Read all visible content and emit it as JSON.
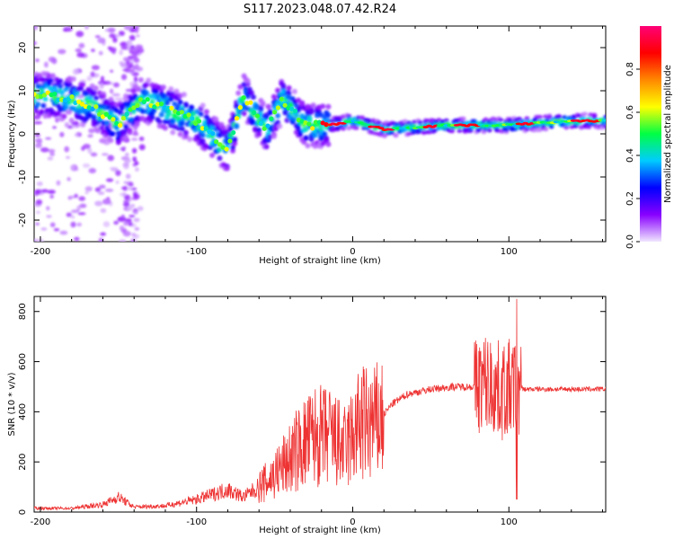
{
  "title": "S117.2023.048.07.42.R24",
  "chart_data": [
    {
      "type": "heatmap",
      "xlabel": "Height of straight line (km)",
      "ylabel": "Frequency (Hz)",
      "xlim": [
        -204,
        162
      ],
      "ylim": [
        -25,
        25
      ],
      "xticks": [
        -200,
        -100,
        0,
        100
      ],
      "yticks": [
        -20,
        -10,
        0,
        10,
        20
      ],
      "colorbar": {
        "label": "Normalized spectral amplitude",
        "range": [
          0.0,
          1.0
        ],
        "ticks": [
          0.0,
          0.2,
          0.4,
          0.6,
          0.8
        ],
        "colors": [
          "#f0e6ff",
          "#8800ff",
          "#0000ff",
          "#00ccff",
          "#00ff44",
          "#ffff00",
          "#ff8800",
          "#ff0000",
          "#ff0077"
        ]
      },
      "ridge": [
        {
          "x": -195,
          "y": 9
        },
        {
          "x": -180,
          "y": 8
        },
        {
          "x": -165,
          "y": 6
        },
        {
          "x": -150,
          "y": 2
        },
        {
          "x": -135,
          "y": 8
        },
        {
          "x": -120,
          "y": 6
        },
        {
          "x": -100,
          "y": 3
        },
        {
          "x": -80,
          "y": -4
        },
        {
          "x": -70,
          "y": 9
        },
        {
          "x": -55,
          "y": 1
        },
        {
          "x": -45,
          "y": 8
        },
        {
          "x": -30,
          "y": 2
        },
        {
          "x": -15,
          "y": 2
        },
        {
          "x": 0,
          "y": 3
        },
        {
          "x": 20,
          "y": 1
        },
        {
          "x": 60,
          "y": 2
        },
        {
          "x": 100,
          "y": 2
        },
        {
          "x": 140,
          "y": 3
        },
        {
          "x": 162,
          "y": 3
        }
      ]
    },
    {
      "type": "line",
      "xlabel": "Height of straight line (km)",
      "ylabel": "SNR (10 * v/v)",
      "xlim": [
        -204,
        162
      ],
      "ylim": [
        0,
        860
      ],
      "xticks": [
        -200,
        -100,
        0,
        100
      ],
      "yticks": [
        0,
        200,
        400,
        600,
        800
      ],
      "color": "#ee3333",
      "series": [
        {
          "x": -204,
          "y": 15
        },
        {
          "x": -180,
          "y": 15
        },
        {
          "x": -160,
          "y": 30
        },
        {
          "x": -150,
          "y": 60
        },
        {
          "x": -140,
          "y": 20
        },
        {
          "x": -120,
          "y": 25
        },
        {
          "x": -100,
          "y": 50
        },
        {
          "x": -90,
          "y": 70
        },
        {
          "x": -80,
          "y": 90
        },
        {
          "x": -70,
          "y": 60
        },
        {
          "x": -55,
          "y": 120
        },
        {
          "x": -45,
          "y": 180
        },
        {
          "x": -35,
          "y": 250
        },
        {
          "x": -25,
          "y": 300
        },
        {
          "x": -15,
          "y": 300
        },
        {
          "x": -5,
          "y": 250
        },
        {
          "x": 5,
          "y": 350
        },
        {
          "x": 15,
          "y": 350
        },
        {
          "x": 25,
          "y": 430
        },
        {
          "x": 35,
          "y": 470
        },
        {
          "x": 50,
          "y": 490
        },
        {
          "x": 65,
          "y": 500
        },
        {
          "x": 78,
          "y": 500
        },
        {
          "x": 85,
          "y": 520
        },
        {
          "x": 95,
          "y": 480
        },
        {
          "x": 105,
          "y": 500
        },
        {
          "x": 110,
          "y": 490
        },
        {
          "x": 130,
          "y": 490
        },
        {
          "x": 162,
          "y": 490
        }
      ]
    }
  ]
}
